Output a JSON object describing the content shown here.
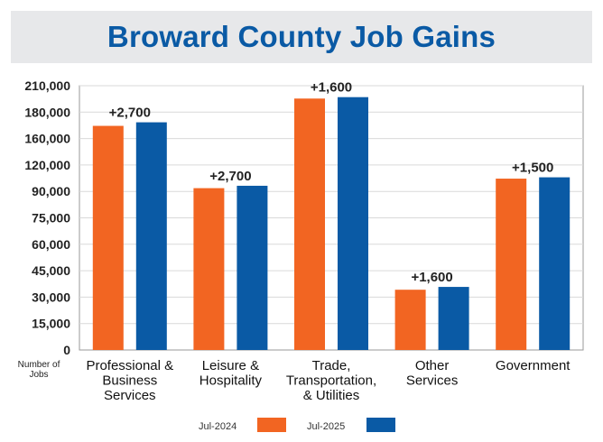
{
  "title": "Broward County Job Gains",
  "colors": {
    "orange": "#f26522",
    "blue": "#0a5aa5",
    "title_bg": "#e7e8ea",
    "title_text": "#0a5aa5"
  },
  "chart_data": {
    "type": "bar",
    "title": "Broward County Job Gains",
    "ylabel": "Number of Jobs",
    "xlabel": "",
    "categories": [
      [
        "Professional &",
        "Business",
        "Services"
      ],
      [
        "Leisure &",
        "Hospitality"
      ],
      [
        "Trade,",
        "Transportation,",
        "& Utilities"
      ],
      [
        "Other",
        "Services"
      ],
      [
        "Government"
      ]
    ],
    "yticks": [
      "0",
      "15,000",
      "30,000",
      "45,000",
      "60,000",
      "75,000",
      "90,000",
      "120,000",
      "160,000",
      "180,000",
      "210,000"
    ],
    "ytick_values": [
      0,
      15000,
      30000,
      45000,
      60000,
      75000,
      90000,
      120000,
      160000,
      180000,
      210000
    ],
    "series": [
      {
        "name": "Jul-2024",
        "color": "#f26522",
        "values": [
          169600,
          93700,
          195400,
          34200,
          104500
        ]
      },
      {
        "name": "Jul-2025",
        "color": "#0a5aa5",
        "values": [
          172300,
          96400,
          197000,
          35800,
          106000
        ]
      }
    ],
    "annotations": [
      "+2,700",
      "+2,700",
      "+1,600",
      "+1,600",
      "+1,500"
    ],
    "grid": true,
    "legend_position": "bottom"
  }
}
